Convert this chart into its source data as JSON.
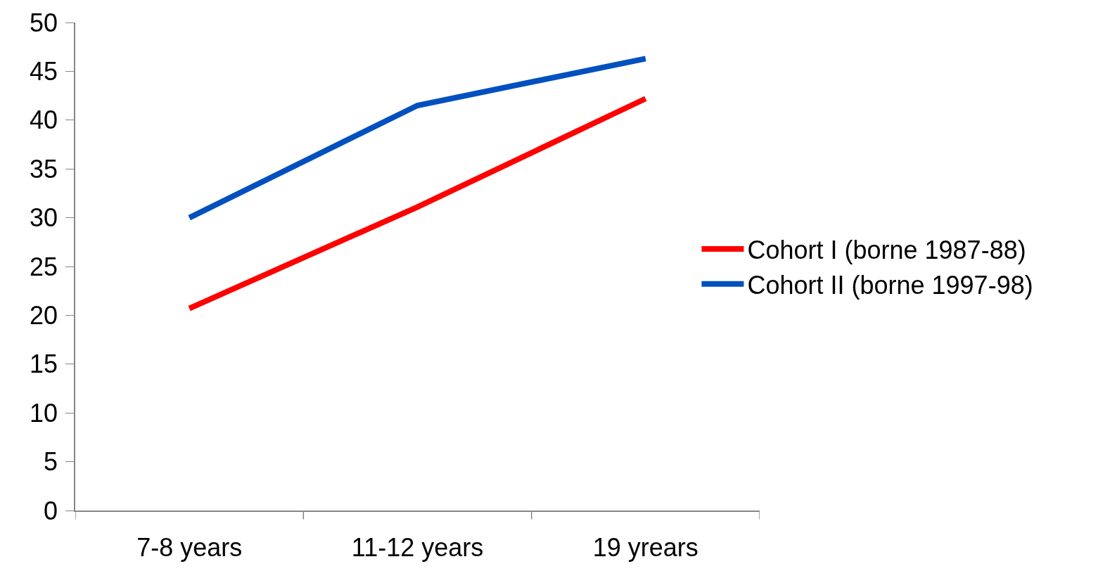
{
  "chart_data": {
    "type": "line",
    "categories": [
      "7-8 years",
      "11-12 years",
      "19 yrears"
    ],
    "series": [
      {
        "name": "Cohort I (borne 1987-88)",
        "color": "#ff0000",
        "values": [
          20.7,
          31.1,
          42.2
        ]
      },
      {
        "name": "Cohort II (borne 1997-98)",
        "color": "#0050c0",
        "values": [
          30,
          41.5,
          46.3
        ]
      }
    ],
    "ylim": [
      0,
      50
    ],
    "yticks": [
      0,
      5,
      10,
      15,
      20,
      25,
      30,
      35,
      40,
      45,
      50
    ],
    "grid": false,
    "legend": "right",
    "marker": "none",
    "line_style": "solid"
  }
}
